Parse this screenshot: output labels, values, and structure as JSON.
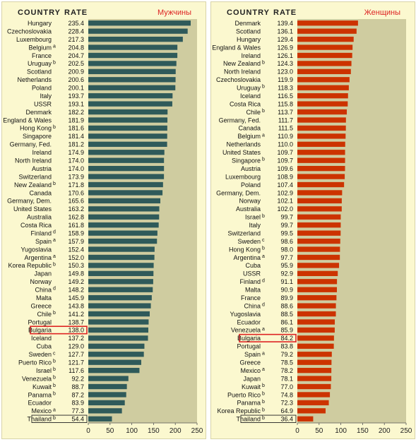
{
  "chart_data": [
    {
      "type": "bar",
      "orientation": "horizontal",
      "title": "Мужчины",
      "column_header_country": "COUNTRY",
      "column_header_rate": "RATE",
      "bar_color": "#2f5a5a",
      "highlight_color": "#dd2222",
      "plot_background": "#cfcca0",
      "xlim": [
        0,
        250
      ],
      "xticks": [
        "0",
        "50",
        "100",
        "150",
        "200",
        "250"
      ],
      "highlighted": [
        "Bulgaria"
      ],
      "boxed": [
        "Thailand"
      ],
      "categories": [
        "Hungary",
        "Czechoslovakia",
        "Luxembourg",
        "Belgium",
        "France",
        "Uruguay",
        "Scotland",
        "Netherlands",
        "Poland",
        "Italy",
        "USSR",
        "Denmark",
        "England & Wales",
        "Hong Kong",
        "Singapore",
        "Germany, Fed.",
        "Ireland",
        "North Ireland",
        "Austria",
        "Switzerland",
        "New Zealand",
        "Canada",
        "Germany, Dem.",
        "United States",
        "Australia",
        "Costa Rica",
        "Finland",
        "Spain",
        "Yugoslavia",
        "Argentina",
        "Korea Republic",
        "Japan",
        "Norway",
        "China",
        "Malta",
        "Greece",
        "Chile",
        "Portugal",
        "Bulgaria",
        "Iceland",
        "Cuba",
        "Sweden",
        "Puerto Rico",
        "Israel",
        "Venezuela",
        "Kuwait",
        "Panama",
        "Ecuador",
        "Mexico",
        "Thailand"
      ],
      "notes": [
        "",
        "",
        "",
        "a",
        "",
        "b",
        "",
        "",
        "",
        "",
        "",
        "",
        "",
        "b",
        "",
        "",
        "",
        "",
        "",
        "",
        "b",
        "",
        "",
        "",
        "",
        "",
        "d",
        "a",
        "",
        "a",
        "b",
        "",
        "",
        "d",
        "",
        "",
        "b",
        "",
        "",
        "",
        "",
        "c",
        "b",
        "b",
        "b",
        "b",
        "b",
        "",
        "a",
        "b"
      ],
      "labels": [
        "235.4",
        "228.4",
        "217.3",
        "204.8",
        "204.7",
        "202.5",
        "200.9",
        "200.6",
        "200.1",
        "193.7",
        "193.1",
        "182.2",
        "181.9",
        "181.6",
        "181.4",
        "181.2",
        "174.9",
        "174.0",
        "174.0",
        "173.9",
        "171.8",
        "170.6",
        "165.6",
        "163.2",
        "162.8",
        "161.8",
        "158.9",
        "157.9",
        "152.4",
        "152.0",
        "150.3",
        "149.8",
        "149.2",
        "148.2",
        "145.9",
        "143.8",
        "141.2",
        "138.7",
        "138.0",
        "137.2",
        "129.0",
        "127.7",
        "121.7",
        "117.6",
        "92.2",
        "88.7",
        "87.2",
        "83.9",
        "77.3",
        "54.4"
      ],
      "values": [
        235.4,
        228.4,
        217.3,
        204.8,
        204.7,
        202.5,
        200.9,
        200.6,
        200.1,
        193.7,
        193.1,
        182.2,
        181.9,
        181.6,
        181.4,
        181.2,
        174.9,
        174.0,
        174.0,
        173.9,
        171.8,
        170.6,
        165.6,
        163.2,
        162.8,
        161.8,
        158.9,
        157.9,
        152.4,
        152.0,
        150.3,
        149.8,
        149.2,
        148.2,
        145.9,
        143.8,
        141.2,
        138.7,
        138.0,
        137.2,
        129.0,
        127.7,
        121.7,
        117.6,
        92.2,
        88.7,
        87.2,
        83.9,
        77.3,
        54.4
      ]
    },
    {
      "type": "bar",
      "orientation": "horizontal",
      "title": "Женщины",
      "column_header_country": "COUNTRY",
      "column_header_rate": "RATE",
      "bar_color": "#cc3300",
      "highlight_color": "#dd2222",
      "plot_background": "#cfcca0",
      "xlim": [
        0,
        250
      ],
      "xticks": [
        "0",
        "50",
        "100",
        "150",
        "200",
        "250"
      ],
      "highlighted": [
        "Bulgaria"
      ],
      "boxed": [
        "Thailand"
      ],
      "categories": [
        "Denmark",
        "Scotland",
        "Hungary",
        "England & Wales",
        "Ireland",
        "New Zealand",
        "North Ireland",
        "Czechoslovakia",
        "Uruguay",
        "Iceland",
        "Costa Rica",
        "Chile",
        "Germany, Fed.",
        "Canada",
        "Belgium",
        "Netherlands",
        "United States",
        "Singapore",
        "Austria",
        "Luxembourg",
        "Poland",
        "Germany, Dem.",
        "Norway",
        "Australia",
        "Israel",
        "Italy",
        "Switzerland",
        "Sweden",
        "Hong Kong",
        "Argentina",
        "Cuba",
        "USSR",
        "Finland",
        "Malta",
        "France",
        "China",
        "Yugoslavia",
        "Ecuador",
        "Venezuela",
        "Bulgaria",
        "Portugal",
        "Spain",
        "Greece",
        "Mexico",
        "Japan",
        "Kuwait",
        "Puerto Rico",
        "Panama",
        "Korea Republic",
        "Thailand"
      ],
      "notes": [
        "",
        "",
        "",
        "",
        "",
        "b",
        "",
        "",
        "b",
        "",
        "",
        "b",
        "",
        "",
        "a",
        "",
        "",
        "b",
        "",
        "",
        "",
        "",
        "",
        "",
        "b",
        "",
        "",
        "c",
        "b",
        "a",
        "",
        "",
        "d",
        "",
        "",
        "d",
        "",
        "",
        "a",
        "",
        "",
        "a",
        "",
        "a",
        "",
        "b",
        "b",
        "b",
        "b",
        "b"
      ],
      "labels": [
        "139.4",
        "136.1",
        "129.4",
        "126.9",
        "126.1",
        "124.3",
        "123.0",
        "119.9",
        "118.3",
        "116.5",
        "115.8",
        "113.7",
        "111.7",
        "111.5",
        "110.9",
        "110.0",
        "109.7",
        "109.7",
        "109.6",
        "108.9",
        "107.4",
        "102.9",
        "102.1",
        "102.0",
        "99.7",
        "99.7",
        "99.5",
        "98.6",
        "98.0",
        "97.7",
        "95.9",
        "92.9",
        "91.1",
        "90.9",
        "89.9",
        "88.6",
        "88.5",
        "86.1",
        "85.9",
        "84.2",
        "83.8",
        "79.2",
        "78.5",
        "78.2",
        "78.1",
        "77.0",
        "74.8",
        "72.3",
        "64.9",
        "36.4"
      ],
      "values": [
        139.4,
        136.1,
        129.4,
        126.9,
        126.1,
        124.3,
        123.0,
        119.9,
        118.3,
        116.5,
        115.8,
        113.7,
        111.7,
        111.5,
        110.9,
        110.0,
        109.7,
        109.7,
        109.6,
        108.9,
        107.4,
        102.9,
        102.1,
        102.0,
        99.7,
        99.7,
        99.5,
        98.6,
        98.0,
        97.7,
        95.9,
        92.9,
        91.1,
        90.9,
        89.9,
        88.6,
        88.5,
        86.1,
        85.9,
        84.2,
        83.8,
        79.2,
        78.5,
        78.2,
        78.1,
        77.0,
        74.8,
        72.3,
        64.9,
        36.4
      ]
    }
  ]
}
